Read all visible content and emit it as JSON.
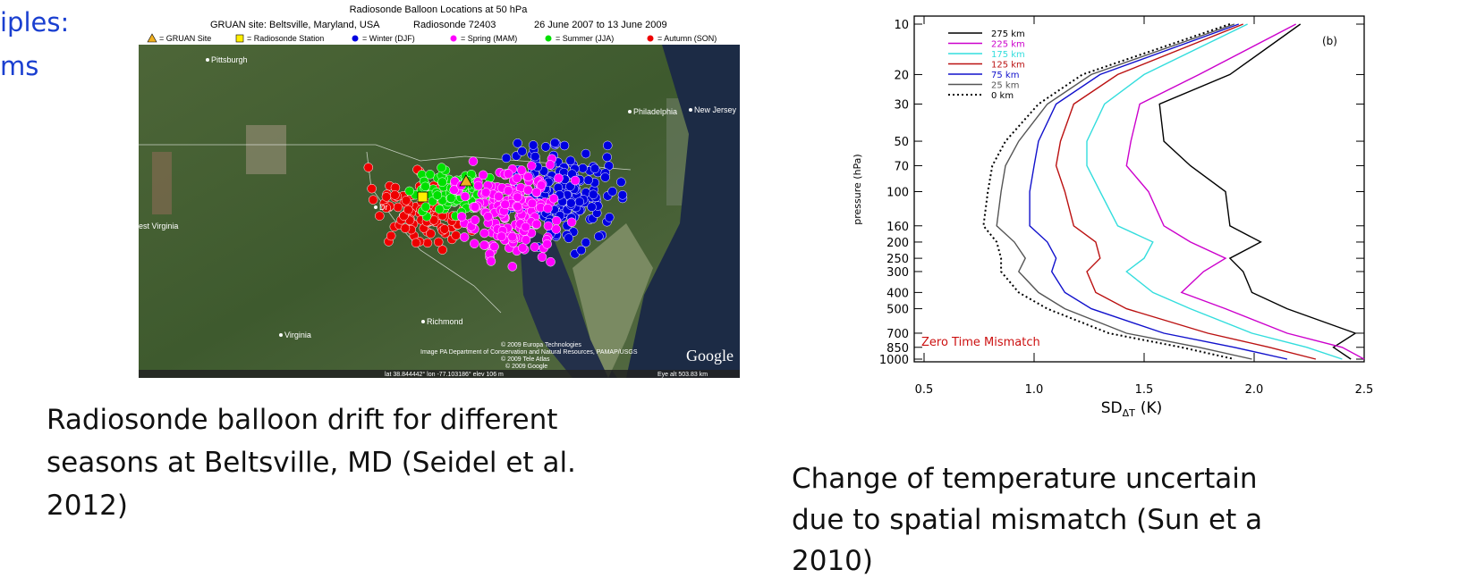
{
  "slide": {
    "title_fragment": [
      "iples:",
      "ms"
    ]
  },
  "left_figure": {
    "title": "Radiosonde Balloon Locations at 50 hPa",
    "subtitle": [
      "GRUAN site: Beltsville, Maryland, USA",
      "Radiosonde 72403",
      "26 June 2007  to 13 June 2009"
    ],
    "legend": [
      {
        "label": "= GRUAN Site",
        "color": "#f0b020"
      },
      {
        "label": "= Radiosonde Station",
        "color": "#ffee00"
      },
      {
        "label": "= Winter (DJF)",
        "color": "#0000e0"
      },
      {
        "label": "= Spring (MAM)",
        "color": "#ff00ff"
      },
      {
        "label": "= Summer (JJA)",
        "color": "#00e000"
      },
      {
        "label": "= Autumn (SON)",
        "color": "#ee0000"
      }
    ],
    "place_labels": [
      "Pittsburgh",
      "Philadelphia",
      "New Jersey",
      "est Virginia",
      "Dr",
      "Virginia",
      "Richmond"
    ],
    "credits": [
      "© 2009 Europa Technologies",
      "Image PA Department of Conservation and Natural Resources, PAMAP/USGS",
      "© 2009 Tele Atlas",
      "© 2009 Google"
    ],
    "logo": "Google",
    "status_bar": [
      "lat  38.844442°  lon  -77.103186°  elev  106 m",
      "Eye alt  503.83 km"
    ],
    "caption": [
      "Radiosonde balloon drift for different",
      "seasons at Beltsville, MD (Seidel et al.",
      "2012)"
    ]
  },
  "chart_data": {
    "type": "line",
    "xlabel": "SD",
    "xlabel_subscript": "ΔT",
    "xlabel_unit": "(K)",
    "ylabel": "pressure (hPa)",
    "annotations": [
      "(b)",
      "Zero Time Mismatch"
    ],
    "y": [
      10,
      20,
      30,
      50,
      70,
      100,
      160,
      200,
      250,
      300,
      400,
      500,
      700,
      850,
      1000
    ],
    "ylim": [
      10,
      1000
    ],
    "log_y": true,
    "y_inverted": true,
    "yticks": [
      10,
      20,
      30,
      50,
      70,
      100,
      160,
      200,
      250,
      300,
      400,
      500,
      700,
      850,
      1000
    ],
    "xlim": [
      0.5,
      2.5
    ],
    "xticks": [
      0.5,
      {
        "value": 1,
        "label": "1.0"
      },
      1.5,
      {
        "value": 2,
        "label": "2.0"
      },
      2.5
    ],
    "legend": "upper left",
    "series": [
      {
        "name": "275 km",
        "color": "#000000",
        "style": "solid",
        "values": [
          2.21,
          1.89,
          1.57,
          1.59,
          1.71,
          1.87,
          1.89,
          2.03,
          1.89,
          1.95,
          1.99,
          2.15,
          2.46,
          2.36,
          2.44
        ]
      },
      {
        "name": "225 km",
        "color": "#cc00cc",
        "style": "solid",
        "values": [
          2.19,
          1.75,
          1.48,
          1.44,
          1.42,
          1.52,
          1.59,
          1.71,
          1.87,
          1.77,
          1.67,
          1.87,
          2.15,
          2.4,
          2.5
        ]
      },
      {
        "name": "175 km",
        "color": "#33dddd",
        "style": "solid",
        "values": [
          1.97,
          1.5,
          1.32,
          1.24,
          1.24,
          1.3,
          1.38,
          1.54,
          1.5,
          1.42,
          1.54,
          1.71,
          1.99,
          2.24,
          2.4
        ]
      },
      {
        "name": "125 km",
        "color": "#bb1111",
        "style": "solid",
        "values": [
          1.95,
          1.38,
          1.18,
          1.12,
          1.1,
          1.14,
          1.18,
          1.28,
          1.3,
          1.24,
          1.28,
          1.42,
          1.79,
          2.07,
          2.28
        ]
      },
      {
        "name": "75 km",
        "color": "#1111cc",
        "style": "solid",
        "values": [
          1.93,
          1.3,
          1.1,
          1.02,
          1.0,
          0.98,
          0.98,
          1.06,
          1.1,
          1.08,
          1.14,
          1.26,
          1.59,
          1.91,
          2.15
        ]
      },
      {
        "name": "25 km",
        "color": "#555555",
        "style": "solid",
        "values": [
          1.91,
          1.26,
          1.06,
          0.93,
          0.87,
          0.85,
          0.83,
          0.91,
          0.96,
          0.93,
          1.02,
          1.14,
          1.42,
          1.75,
          1.99
        ]
      },
      {
        "name": "0 km",
        "color": "#000000",
        "style": "dotted",
        "values": [
          1.89,
          1.22,
          1.02,
          0.87,
          0.81,
          0.79,
          0.77,
          0.83,
          0.85,
          0.85,
          0.93,
          1.06,
          1.34,
          1.67,
          1.91
        ]
      }
    ]
  },
  "right_caption": [
    "Change of temperature uncertain",
    "due to spatial mismatch (Sun et a",
    "2010)"
  ]
}
